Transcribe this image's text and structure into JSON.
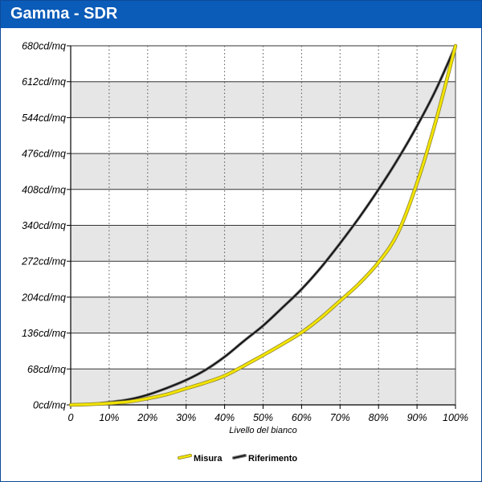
{
  "title": "Gamma - SDR",
  "chart_data": {
    "type": "line",
    "xlabel": "Livello del bianco",
    "ylabel": "",
    "xlim": [
      0,
      100
    ],
    "ylim": [
      0,
      680
    ],
    "x_ticks": [
      "0",
      "10%",
      "20%",
      "30%",
      "40%",
      "50%",
      "60%",
      "70%",
      "80%",
      "90%",
      "100%"
    ],
    "y_ticks": [
      "0cd/mq",
      "68cd/mq",
      "136cd/mq",
      "204cd/mq",
      "272cd/mq",
      "340cd/mq",
      "408cd/mq",
      "476cd/mq",
      "544cd/mq",
      "612cd/mq",
      "680cd/mq"
    ],
    "grid": true,
    "legend_position": "bottom-center",
    "series": [
      {
        "name": "Misura",
        "color": "#f2e400",
        "x": [
          0,
          5,
          10,
          15,
          20,
          25,
          30,
          35,
          40,
          45,
          50,
          55,
          60,
          65,
          70,
          75,
          80,
          85,
          90,
          95,
          100
        ],
        "y": [
          0,
          1,
          3,
          6,
          12,
          20,
          31,
          42,
          55,
          74,
          94,
          115,
          137,
          165,
          197,
          230,
          270,
          325,
          420,
          540,
          680
        ]
      },
      {
        "name": "Riferimento",
        "color": "#111111",
        "x": [
          0,
          5,
          10,
          15,
          20,
          25,
          30,
          35,
          40,
          45,
          50,
          55,
          60,
          65,
          70,
          75,
          80,
          85,
          90,
          95,
          100
        ],
        "y": [
          0,
          1,
          5,
          10,
          19,
          32,
          47,
          66,
          91,
          121,
          150,
          184,
          219,
          260,
          306,
          355,
          408,
          465,
          528,
          598,
          680
        ]
      }
    ]
  }
}
